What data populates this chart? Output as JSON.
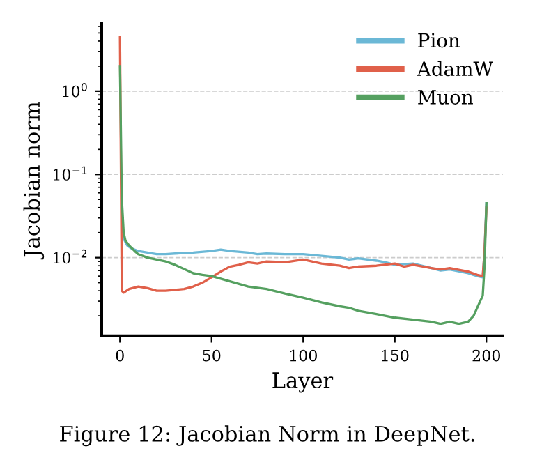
{
  "chart_data": {
    "type": "line",
    "xlabel": "Layer",
    "ylabel": "Jacobian norm",
    "annotations": [
      "Figure 12: Jacobian Norm in DeepNet."
    ],
    "log": "y",
    "grid": "y",
    "legend": "top right",
    "line_style": "solid",
    "marker": "none",
    "xlim": [
      -10,
      209
    ],
    "ylim": [
      0.00115,
      6.6
    ],
    "xticks": [
      0,
      50,
      100,
      150,
      200
    ],
    "yticks": [
      {
        "value": 1,
        "label": "10$^{0}$"
      },
      {
        "value": 0.1,
        "label": "10$^{−1}$"
      },
      {
        "value": 0.01,
        "label": "10$^{−2}$"
      }
    ],
    "series": [
      {
        "name": "Pion",
        "color": "#6bb8d6",
        "x": [
          1,
          2,
          4,
          6,
          10,
          15,
          20,
          25,
          30,
          40,
          50,
          55,
          60,
          70,
          75,
          80,
          90,
          100,
          110,
          120,
          125,
          130,
          140,
          145,
          150,
          160,
          170,
          175,
          180,
          190,
          195,
          198,
          199,
          200
        ],
        "values": [
          0.03,
          0.017,
          0.014,
          0.013,
          0.012,
          0.0115,
          0.011,
          0.011,
          0.0112,
          0.0115,
          0.012,
          0.0125,
          0.012,
          0.0115,
          0.011,
          0.0112,
          0.011,
          0.011,
          0.0105,
          0.01,
          0.0095,
          0.0098,
          0.0092,
          0.0088,
          0.0082,
          0.0085,
          0.0075,
          0.007,
          0.0072,
          0.0065,
          0.006,
          0.0058,
          0.012,
          0.045
        ]
      },
      {
        "name": "AdamW",
        "color": "#e0604a",
        "x": [
          0,
          1,
          2,
          5,
          10,
          15,
          20,
          25,
          30,
          35,
          40,
          45,
          50,
          55,
          60,
          65,
          70,
          75,
          80,
          90,
          100,
          110,
          120,
          125,
          130,
          140,
          150,
          155,
          160,
          170,
          175,
          180,
          190,
          195,
          198,
          199,
          200
        ],
        "values": [
          4.5,
          0.004,
          0.0038,
          0.0042,
          0.0045,
          0.0043,
          0.004,
          0.004,
          0.0041,
          0.0042,
          0.0045,
          0.005,
          0.0058,
          0.0068,
          0.0078,
          0.0082,
          0.0088,
          0.0085,
          0.009,
          0.0088,
          0.0095,
          0.0085,
          0.008,
          0.0075,
          0.0078,
          0.008,
          0.0085,
          0.0078,
          0.0082,
          0.0075,
          0.0072,
          0.0075,
          0.0068,
          0.0062,
          0.006,
          0.012,
          0.04
        ]
      },
      {
        "name": "Muon",
        "color": "#55a060",
        "x": [
          0,
          1,
          2,
          3,
          5,
          8,
          10,
          15,
          20,
          25,
          30,
          40,
          45,
          50,
          60,
          70,
          80,
          90,
          100,
          110,
          120,
          125,
          130,
          140,
          150,
          160,
          170,
          175,
          180,
          185,
          190,
          193,
          196,
          198,
          199,
          200
        ],
        "values": [
          2.0,
          0.05,
          0.02,
          0.016,
          0.014,
          0.012,
          0.011,
          0.01,
          0.0095,
          0.009,
          0.0082,
          0.0065,
          0.0062,
          0.006,
          0.0052,
          0.0045,
          0.0042,
          0.0037,
          0.0033,
          0.0029,
          0.0026,
          0.0025,
          0.0023,
          0.0021,
          0.0019,
          0.0018,
          0.0017,
          0.0016,
          0.0017,
          0.0016,
          0.0017,
          0.002,
          0.0028,
          0.0035,
          0.008,
          0.045
        ]
      }
    ]
  }
}
